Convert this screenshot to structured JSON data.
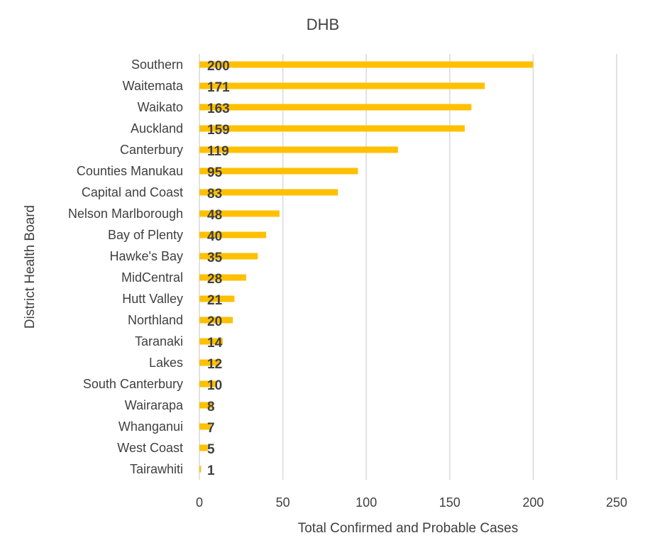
{
  "chart_data": {
    "type": "bar",
    "orientation": "horizontal",
    "title": "DHB",
    "xlabel": "Total Confirmed and Probable Cases",
    "ylabel": "District Health Board",
    "xlim": [
      0,
      250
    ],
    "x_ticks": [
      0,
      50,
      100,
      150,
      200,
      250
    ],
    "grid": true,
    "legend": "none",
    "bar_color": "#FFC000",
    "categories": [
      "Southern",
      "Waitemata",
      "Waikato",
      "Auckland",
      "Canterbury",
      "Counties Manukau",
      "Capital and Coast",
      "Nelson Marlborough",
      "Bay of Plenty",
      "Hawke's Bay",
      "MidCentral",
      "Hutt Valley",
      "Northland",
      "Taranaki",
      "Lakes",
      "South Canterbury",
      "Wairarapa",
      "Whanganui",
      "West Coast",
      "Tairawhiti"
    ],
    "values": [
      200,
      171,
      163,
      159,
      119,
      95,
      83,
      48,
      40,
      35,
      28,
      21,
      20,
      14,
      12,
      10,
      8,
      7,
      5,
      1
    ]
  }
}
